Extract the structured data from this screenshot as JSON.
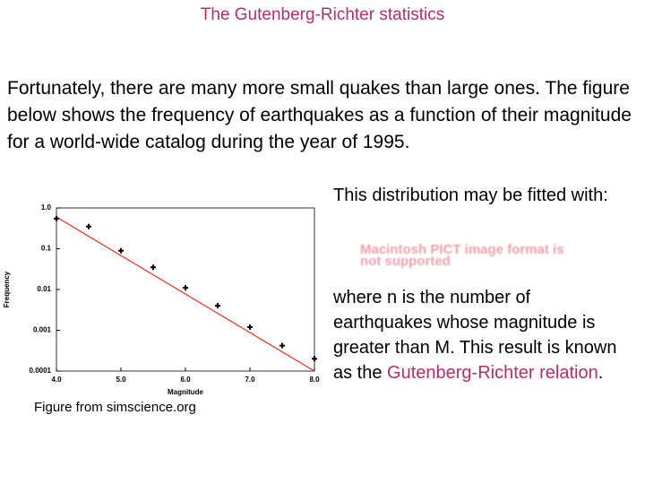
{
  "title": "The Gutenberg-Richter statistics",
  "intro": "Fortunately, there are many more small quakes than large ones. The figure below shows the frequency of earthquakes as a function of their magnitude for a world-wide catalog during the year of 1995.",
  "right_text": {
    "fit_note": "This distribution may be fitted with:",
    "image_placeholder": "Macintosh PICT image format is not supported",
    "explanation": [
      "where n is the number of earthquakes whose magnitude is greater than M. This result is known as the ",
      "Gutenberg-Richter relation",
      "."
    ]
  },
  "caption": "Figure from simscience.org",
  "chart_data": {
    "type": "scatter",
    "x_label": "Magnitude",
    "y_label": "Frequency",
    "x": [
      4.0,
      4.5,
      5.0,
      5.5,
      6.0,
      6.5,
      7.0,
      7.5,
      8.0
    ],
    "values": [
      0.55,
      0.35,
      0.089,
      0.035,
      0.011,
      0.004,
      0.0012,
      0.00042,
      0.0002
    ],
    "color": "#000000",
    "fit_line": {
      "x": [
        4.0,
        8.0
      ],
      "values": [
        0.6,
        0.0001
      ],
      "color": "#e03020"
    },
    "xlim": [
      4.0,
      8.0
    ],
    "xticks": [
      {
        "value": 4,
        "label": "4.0"
      },
      {
        "value": 5,
        "label": "5.0"
      },
      {
        "value": 6,
        "label": "6.0"
      },
      {
        "value": 7,
        "label": "7.0"
      },
      {
        "value": 8,
        "label": "8.0"
      }
    ],
    "ylim": [
      0.0001,
      1
    ],
    "yticks": [
      {
        "value": 1,
        "label": "1.0"
      },
      0.1,
      0.01,
      0.001,
      0.0001
    ],
    "log_y": true
  }
}
